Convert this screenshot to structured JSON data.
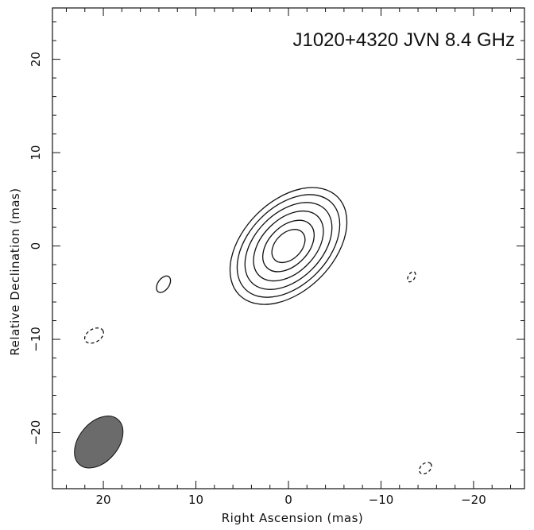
{
  "chart_data": {
    "type": "contour",
    "title": "J1020+4320   JVN  8.4 GHz",
    "xlabel": "Right Ascension  (mas)",
    "ylabel": "Relative Declination  (mas)",
    "xlim": [
      25.5,
      -25.5
    ],
    "ylim": [
      -26,
      25.5
    ],
    "x_major_ticks": [
      20,
      10,
      0,
      -10,
      -20
    ],
    "x_tick_labels": [
      "20",
      "10",
      "0",
      "−10",
      "−20"
    ],
    "y_major_ticks": [
      20,
      10,
      0,
      -10,
      -20
    ],
    "y_tick_labels": [
      "20",
      "10",
      "0",
      "−10",
      "−20"
    ],
    "minor_tick_step": 2,
    "grid": false,
    "main_component": {
      "center": [
        0,
        0
      ],
      "position_angle_deg": 45,
      "levels": [
        {
          "major": 7.5,
          "minor": 4.8
        },
        {
          "major": 6.6,
          "minor": 4.2
        },
        {
          "major": 5.6,
          "minor": 3.55
        },
        {
          "major": 4.5,
          "minor": 2.85
        },
        {
          "major": 3.3,
          "minor": 2.1
        },
        {
          "major": 2.1,
          "minor": 1.4
        }
      ]
    },
    "extra_contours": [
      {
        "label": "positive",
        "center": [
          13.5,
          -4.1
        ],
        "major": 1.0,
        "minor": 0.6,
        "position_angle_deg": 35,
        "dashed": false
      },
      {
        "label": "negative",
        "center": [
          21.0,
          -9.6
        ],
        "major": 1.1,
        "minor": 0.7,
        "position_angle_deg": 60,
        "dashed": true
      },
      {
        "label": "negative",
        "center": [
          -13.3,
          -3.3
        ],
        "major": 0.6,
        "minor": 0.35,
        "position_angle_deg": 30,
        "dashed": true
      },
      {
        "label": "negative",
        "center": [
          -14.8,
          -23.8
        ],
        "major": 0.75,
        "minor": 0.5,
        "position_angle_deg": 50,
        "dashed": true
      }
    ],
    "beam": {
      "center": [
        20.5,
        -21.0
      ],
      "major": 3.2,
      "minor": 2.1,
      "position_angle_deg": 40,
      "color": "#6b6b6b"
    },
    "line_color": "#111111"
  }
}
